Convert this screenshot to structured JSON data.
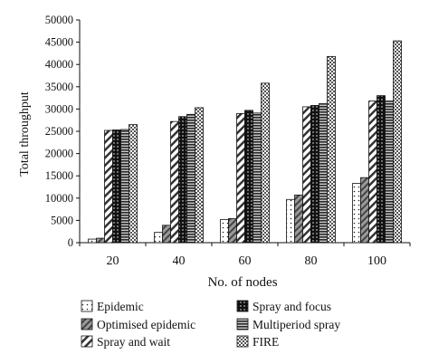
{
  "chart_data": {
    "type": "bar",
    "title": "",
    "xlabel": "No. of nodes",
    "ylabel": "Total throughput",
    "categories": [
      "20",
      "40",
      "60",
      "80",
      "100"
    ],
    "ylim": [
      0,
      50000
    ],
    "yticks": [
      0,
      5000,
      10000,
      15000,
      20000,
      25000,
      30000,
      35000,
      40000,
      45000,
      50000
    ],
    "grid": false,
    "legend_position": "bottom",
    "series": [
      {
        "name": "Epidemic",
        "pattern": "dots",
        "values": [
          800,
          2300,
          5200,
          9700,
          13300
        ]
      },
      {
        "name": "Optimised epidemic",
        "pattern": "diag-gray",
        "values": [
          1000,
          3900,
          5400,
          10700,
          14600
        ]
      },
      {
        "name": "Spray and wait",
        "pattern": "diag-white",
        "values": [
          25200,
          27200,
          29000,
          30500,
          31800
        ]
      },
      {
        "name": "Spray and focus",
        "pattern": "black-dots",
        "values": [
          25300,
          28300,
          29700,
          30800,
          33000
        ]
      },
      {
        "name": "Multiperiod spray",
        "pattern": "hlines",
        "values": [
          25400,
          28800,
          29100,
          31200,
          31800
        ]
      },
      {
        "name": "FIRE",
        "pattern": "checker",
        "values": [
          26500,
          30300,
          35800,
          41800,
          45300
        ]
      }
    ]
  }
}
